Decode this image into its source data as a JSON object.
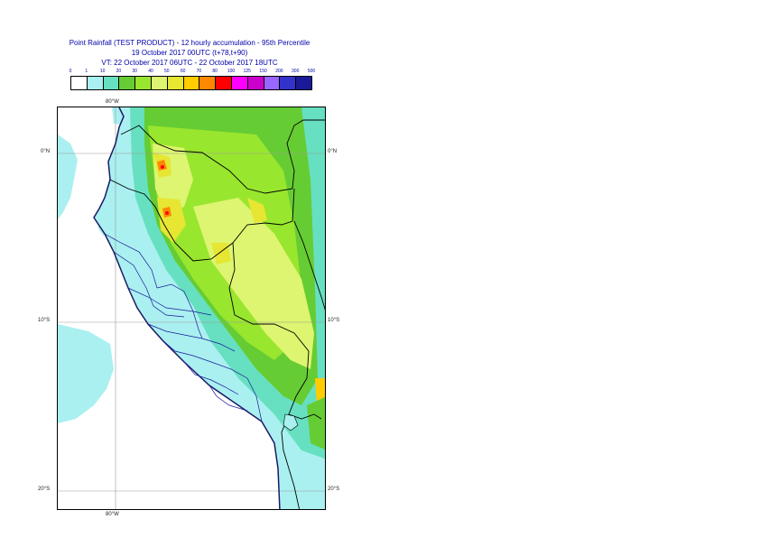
{
  "title": {
    "line1": "Point Rainfall (TEST PRODUCT) - 12 hourly accumulation - 95th Percentile",
    "line2": "19 October 2017 00UTC (t+78,t+90)",
    "line3": "VT: 22 October 2017 06UTC - 22 October 2017 18UTC"
  },
  "legend": {
    "ticks": [
      "0",
      "1",
      "10",
      "20",
      "30",
      "40",
      "50",
      "60",
      "70",
      "80",
      "100",
      "125",
      "150",
      "200",
      "300",
      "500"
    ],
    "colors": [
      "#ffffff",
      "#aaf0f0",
      "#66e0c0",
      "#66cc33",
      "#99e62e",
      "#ddf570",
      "#e6e633",
      "#ffcc00",
      "#ff8800",
      "#ff0000",
      "#ff00ff",
      "#cc00cc",
      "#9966ff",
      "#3333cc",
      "#1a1a99",
      "#000055"
    ]
  },
  "map": {
    "lat_labels_left": [
      "0°N",
      "10°S",
      "20°S"
    ],
    "lat_labels_right": [
      "0°N",
      "10°S",
      "20°S"
    ],
    "lon_label_top": "80°W",
    "lon_label_bottom": "80°W"
  }
}
